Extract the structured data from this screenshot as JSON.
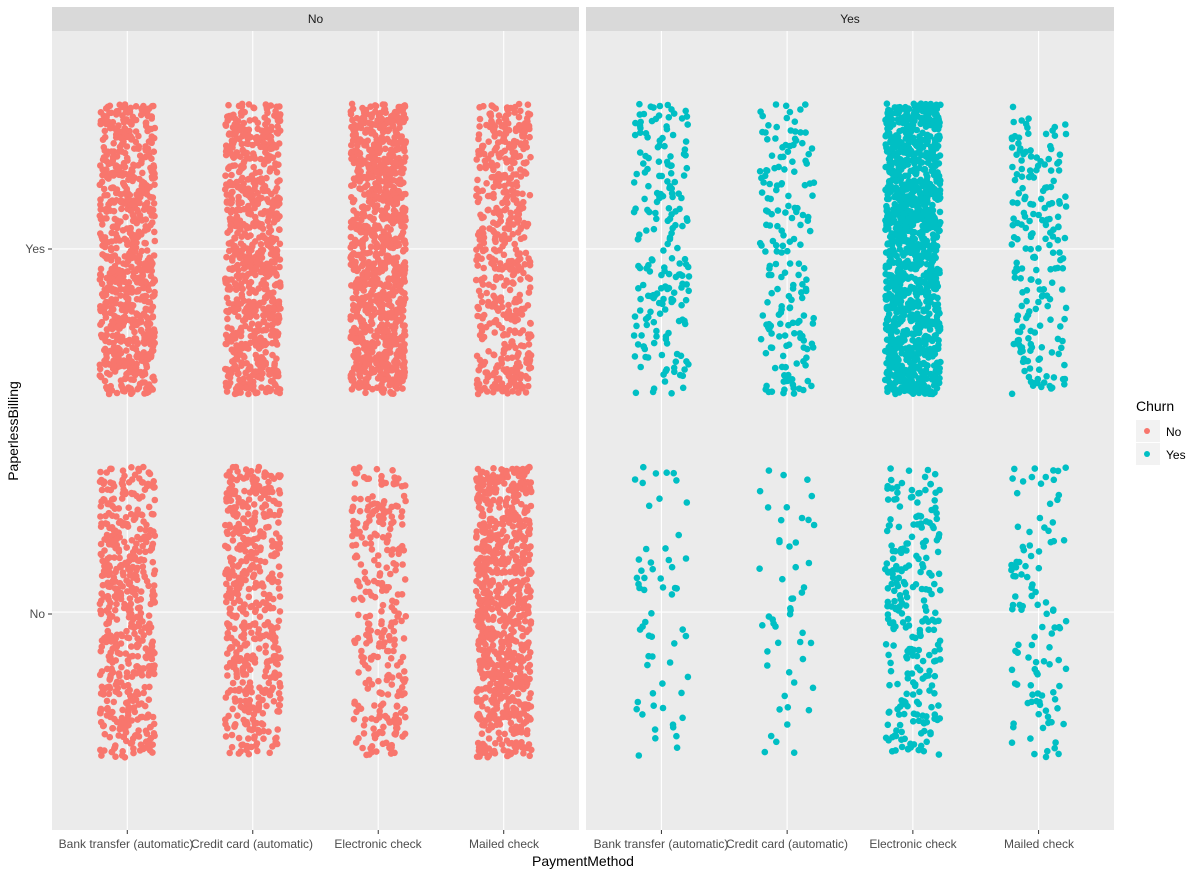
{
  "chart_data": {
    "type": "scatter",
    "subtype": "jitter",
    "facet_variable": "Churn",
    "facets": [
      "No",
      "Yes"
    ],
    "x_categories": [
      "Bank transfer (automatic)",
      "Credit card (automatic)",
      "Electronic check",
      "Mailed check"
    ],
    "y_categories": [
      "No",
      "Yes"
    ],
    "xlabel": "PaymentMethod",
    "ylabel": "PaperlessBilling",
    "legend": {
      "title": "Churn",
      "placement": "right",
      "entries": [
        "No",
        "Yes"
      ]
    },
    "series": [
      {
        "name": "No",
        "color": "#F8766D",
        "counts": [
          {
            "facet": "No",
            "x": "Bank transfer (automatic)",
            "y": "Yes",
            "n": 770
          },
          {
            "facet": "No",
            "x": "Bank transfer (automatic)",
            "y": "No",
            "n": 520
          },
          {
            "facet": "No",
            "x": "Credit card (automatic)",
            "y": "Yes",
            "n": 780
          },
          {
            "facet": "No",
            "x": "Credit card (automatic)",
            "y": "No",
            "n": 510
          },
          {
            "facet": "No",
            "x": "Electronic check",
            "y": "Yes",
            "n": 1000
          },
          {
            "facet": "No",
            "x": "Electronic check",
            "y": "No",
            "n": 290
          },
          {
            "facet": "No",
            "x": "Mailed check",
            "y": "Yes",
            "n": 520
          },
          {
            "facet": "No",
            "x": "Mailed check",
            "y": "No",
            "n": 780
          }
        ]
      },
      {
        "name": "Yes",
        "color": "#00BFC4",
        "counts": [
          {
            "facet": "Yes",
            "x": "Bank transfer (automatic)",
            "y": "Yes",
            "n": 200
          },
          {
            "facet": "Yes",
            "x": "Bank transfer (automatic)",
            "y": "No",
            "n": 60
          },
          {
            "facet": "Yes",
            "x": "Credit card (automatic)",
            "y": "Yes",
            "n": 180
          },
          {
            "facet": "Yes",
            "x": "Credit card (automatic)",
            "y": "No",
            "n": 50
          },
          {
            "facet": "Yes",
            "x": "Electronic check",
            "y": "Yes",
            "n": 1220
          },
          {
            "facet": "Yes",
            "x": "Electronic check",
            "y": "No",
            "n": 250
          },
          {
            "facet": "Yes",
            "x": "Mailed check",
            "y": "Yes",
            "n": 200
          },
          {
            "facet": "Yes",
            "x": "Mailed check",
            "y": "No",
            "n": 110
          }
        ]
      }
    ],
    "jitter": {
      "width": 0.4,
      "height": 0.4
    },
    "grid": true,
    "panel_background": "#EBEBEB",
    "strip_background": "#D9D9D9"
  }
}
